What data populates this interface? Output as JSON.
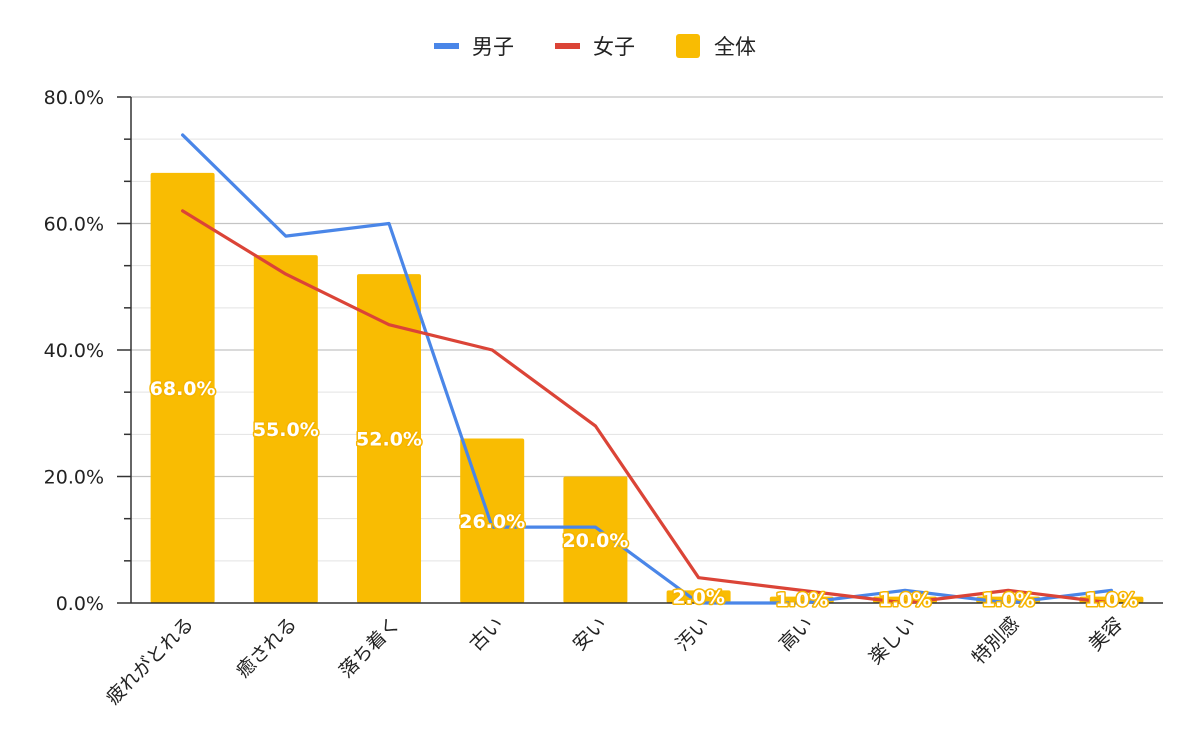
{
  "chart_data": {
    "type": "bar",
    "categories": [
      "疲れがとれる",
      "癒される",
      "落ち着く",
      "古い",
      "安い",
      "汚い",
      "高い",
      "楽しい",
      "特別感",
      "美容"
    ],
    "bar_series": {
      "name": "全体",
      "values": [
        68.0,
        55.0,
        52.0,
        26.0,
        20.0,
        2.0,
        1.0,
        1.0,
        1.0,
        1.0
      ],
      "labels": [
        "68.0%",
        "55.0%",
        "52.0%",
        "26.0%",
        "20.0%",
        "2.0%",
        "1.0%",
        "1.0%",
        "1.0%",
        "1.0%"
      ],
      "color": "#F9BC02"
    },
    "line_series": [
      {
        "name": "男子",
        "values": [
          74,
          58,
          60,
          12,
          12,
          0,
          0,
          2,
          0,
          2
        ],
        "color": "#4A86E8"
      },
      {
        "name": "女子",
        "values": [
          62,
          52,
          44,
          40,
          28,
          4,
          2,
          0,
          2,
          0
        ],
        "color": "#DB4437"
      }
    ],
    "legend": {
      "position": "top",
      "items": [
        {
          "name": "男子",
          "color": "#4A86E8",
          "shape": "line"
        },
        {
          "name": "女子",
          "color": "#DB4437",
          "shape": "line"
        },
        {
          "name": "全体",
          "color": "#F9BC02",
          "shape": "square"
        }
      ]
    },
    "y_axis": {
      "min": 0,
      "max": 80,
      "major_ticks": [
        0,
        20,
        40,
        60,
        80
      ],
      "tick_labels": [
        "0.0%",
        "20.0%",
        "40.0%",
        "60.0%",
        "80.0%"
      ],
      "minor_step": 6.6667
    },
    "grid": true
  }
}
